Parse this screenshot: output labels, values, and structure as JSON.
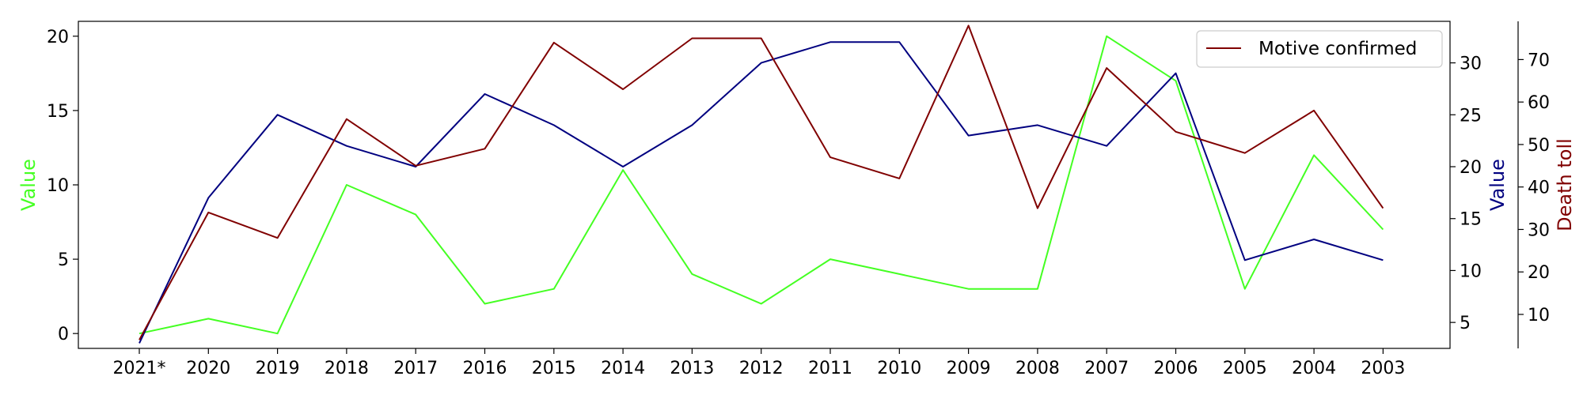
{
  "chart_data": {
    "type": "line",
    "categories": [
      "2021*",
      "2020",
      "2019",
      "2018",
      "2017",
      "2016",
      "2015",
      "2014",
      "2013",
      "2012",
      "2011",
      "2010",
      "2009",
      "2008",
      "2007",
      "2006",
      "2005",
      "2004",
      "2003"
    ],
    "axes": {
      "left": {
        "label": "Value",
        "color": "#44ff22",
        "ylim": [
          -1,
          21
        ],
        "ticks": [
          0,
          5,
          10,
          15,
          20
        ]
      },
      "right1": {
        "label": "Value",
        "color": "#000080",
        "ylim": [
          2.5,
          34
        ],
        "ticks": [
          5,
          10,
          15,
          20,
          25,
          30
        ]
      },
      "right2": {
        "label": "Death toll",
        "color": "#800000",
        "ylim": [
          2,
          79
        ],
        "ticks": [
          10,
          20,
          30,
          40,
          50,
          60,
          70
        ]
      }
    },
    "series": [
      {
        "axis": "left",
        "color": "#44ff22",
        "values": [
          0,
          1,
          0,
          10,
          8,
          2,
          3,
          11,
          4,
          2,
          5,
          4,
          3,
          3,
          20,
          17,
          3,
          12,
          7
        ]
      },
      {
        "axis": "right1",
        "color": "#000080",
        "values": [
          3,
          17,
          25,
          22,
          20,
          27,
          24,
          20,
          24,
          30,
          32,
          32,
          23,
          24,
          22,
          29,
          11,
          13,
          11
        ]
      },
      {
        "axis": "right2",
        "name": "Motive confirmed",
        "color": "#800000",
        "values": [
          4,
          34,
          28,
          56,
          45,
          49,
          74,
          63,
          75,
          75,
          47,
          42,
          78,
          35,
          68,
          53,
          48,
          58,
          35
        ]
      }
    ],
    "legend": {
      "position": "top-right",
      "entries": [
        "Motive confirmed"
      ]
    },
    "grid": false
  }
}
